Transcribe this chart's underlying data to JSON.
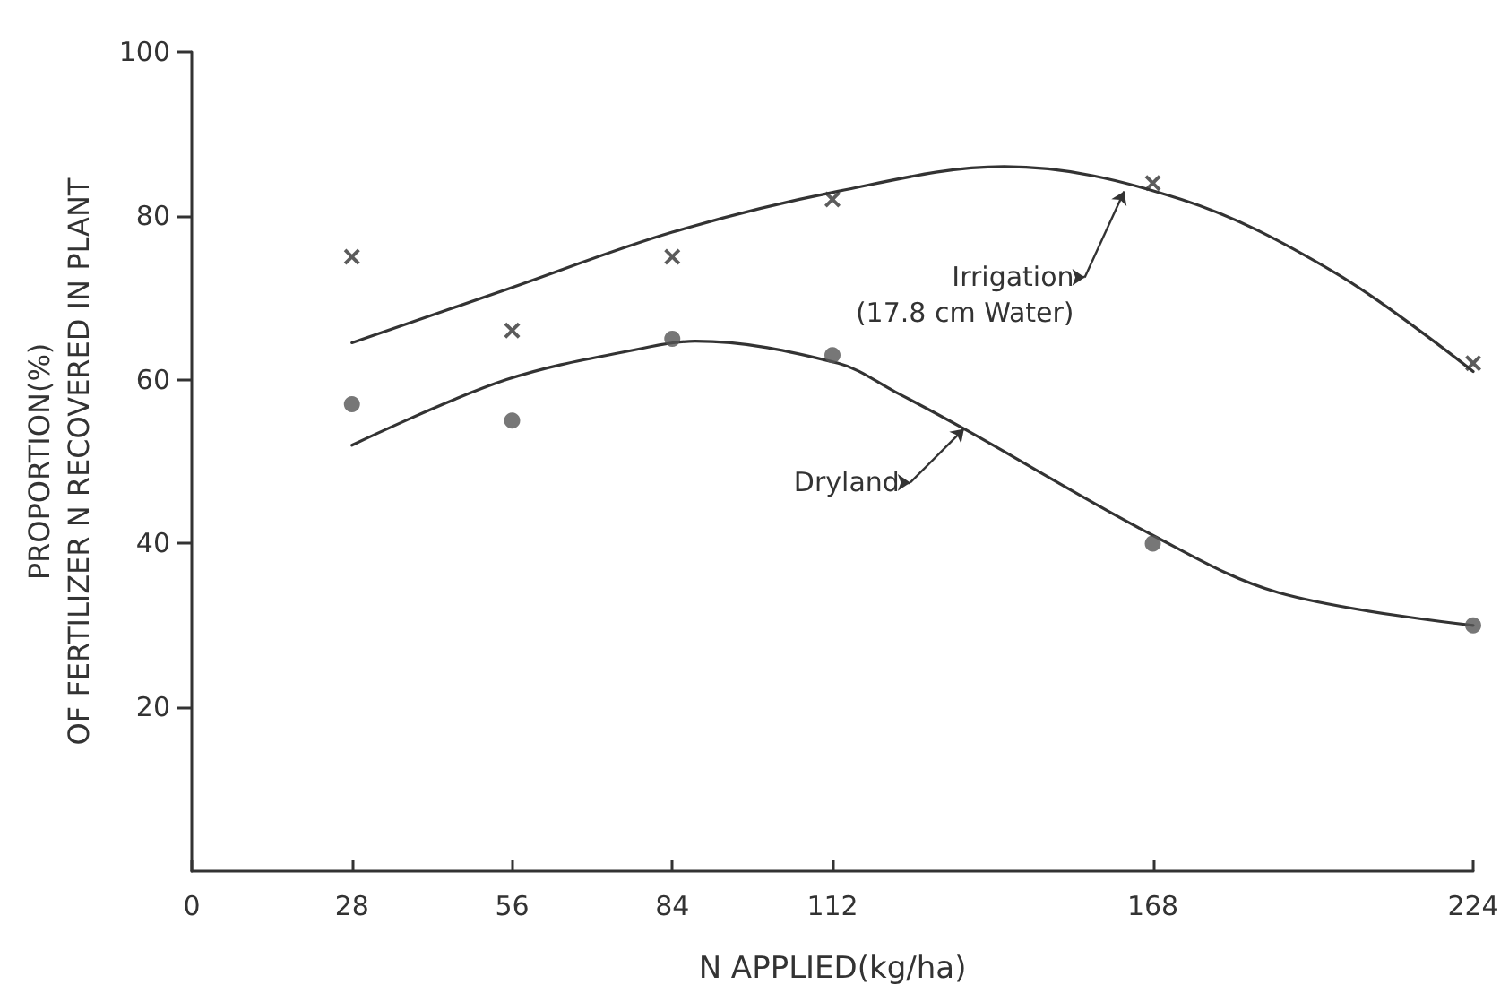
{
  "chart_data": {
    "type": "scatter",
    "xlabel": "N APPLIED(kg/ha)",
    "ylabel": "PROPORTION(%)\nOF FERTILIZER N RECOVERED IN PLANT",
    "xlim": [
      0,
      224
    ],
    "xticks": [
      0,
      28,
      56,
      84,
      112,
      168,
      224
    ],
    "ylim": [
      0,
      100
    ],
    "yticks": [
      20,
      40,
      60,
      80,
      100
    ],
    "grid": false,
    "series": [
      {
        "marker": "cross",
        "color": "#333333",
        "x": [
          28,
          56,
          84,
          112,
          168,
          224
        ],
        "values": [
          75,
          66,
          75,
          82,
          84,
          62
        ]
      },
      {
        "marker": "circle",
        "color": "#555555",
        "x": [
          28,
          56,
          84,
          112,
          168,
          224
        ],
        "values": [
          57,
          55,
          65,
          63,
          40,
          30
        ]
      },
      {
        "type": "line",
        "marker": "none",
        "line_style": "solid",
        "color": "#333333",
        "x": [
          28,
          55,
          84,
          113,
          142,
          173,
          200,
          224
        ],
        "values": [
          64.5,
          71,
          78,
          83,
          86,
          82,
          73,
          61
        ]
      },
      {
        "type": "line",
        "marker": "none",
        "line_style": "solid",
        "color": "#333333",
        "x": [
          28,
          55,
          80,
          88,
          113,
          123,
          135,
          168,
          190,
          224
        ],
        "values": [
          52,
          60,
          64,
          64.7,
          62,
          58.5,
          54,
          41,
          34,
          30
        ]
      }
    ],
    "annotations": [
      {
        "text": "Irrigation\n(17.8 cm Water)",
        "x": 163,
        "y": 83
      },
      {
        "text": "Dryland",
        "x": 135,
        "y": 54
      }
    ]
  }
}
